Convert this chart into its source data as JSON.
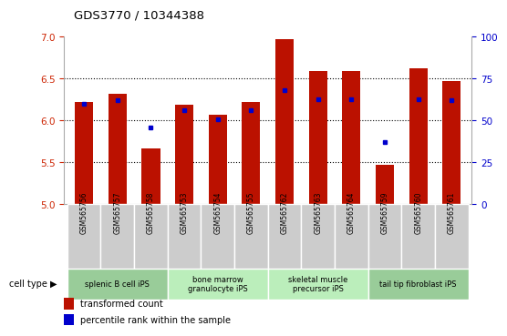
{
  "title": "GDS3770 / 10344388",
  "samples": [
    "GSM565756",
    "GSM565757",
    "GSM565758",
    "GSM565753",
    "GSM565754",
    "GSM565755",
    "GSM565762",
    "GSM565763",
    "GSM565764",
    "GSM565759",
    "GSM565760",
    "GSM565761"
  ],
  "bar_values": [
    6.22,
    6.32,
    5.67,
    6.19,
    6.07,
    6.22,
    6.97,
    6.59,
    6.59,
    5.47,
    6.62,
    6.47
  ],
  "percentile_values": [
    60,
    62,
    46,
    56,
    51,
    56,
    68,
    63,
    63,
    37,
    63,
    62
  ],
  "ylim_left": [
    5.0,
    7.0
  ],
  "ylim_right": [
    0,
    100
  ],
  "yticks_left": [
    5.0,
    5.5,
    6.0,
    6.5,
    7.0
  ],
  "yticks_right": [
    0,
    25,
    50,
    75,
    100
  ],
  "bar_color": "#bb1100",
  "dot_color": "#0000cc",
  "bg_color": "#ffffff",
  "cell_bg": "#cccccc",
  "group_info": [
    {
      "label": "splenic B cell iPS",
      "indices": [
        0,
        1,
        2
      ],
      "color": "#99cc99"
    },
    {
      "label": "bone marrow\ngranulocyte iPS",
      "indices": [
        3,
        4,
        5
      ],
      "color": "#bbeebb"
    },
    {
      "label": "skeletal muscle\nprecursor iPS",
      "indices": [
        6,
        7,
        8
      ],
      "color": "#bbeebb"
    },
    {
      "label": "tail tip fibroblast iPS",
      "indices": [
        9,
        10,
        11
      ],
      "color": "#99cc99"
    }
  ],
  "dotted_lines": [
    5.5,
    6.0,
    6.5
  ],
  "bar_bottom": 5.0,
  "bar_width": 0.55
}
